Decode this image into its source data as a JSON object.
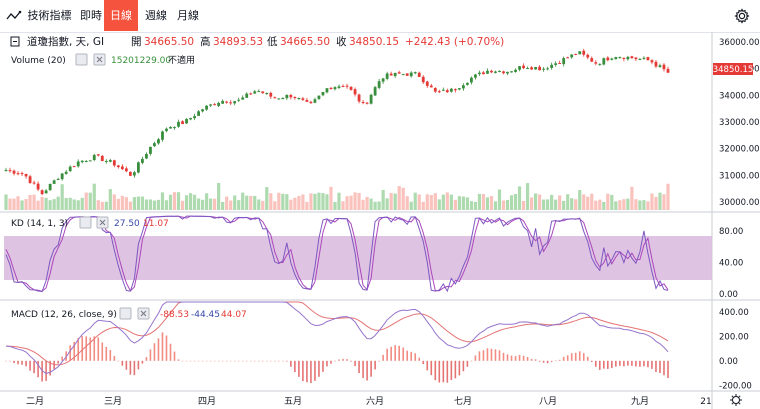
{
  "toolbar": {
    "indicators_label": "技術指標",
    "tabs": [
      {
        "label": "即時",
        "active": false
      },
      {
        "label": "日線",
        "active": true
      },
      {
        "label": "週線",
        "active": false
      },
      {
        "label": "月線",
        "active": false
      }
    ],
    "settings_icon": "gear-icon",
    "indicators_icon": "indicators-icon"
  },
  "colors": {
    "up": "#26a69a",
    "down": "#ef5350",
    "bull_candle": "#388e3c",
    "bear_candle": "#e53935",
    "accent": "#f5533d",
    "kd_band": "#d9b8dd",
    "k_line": "#7e57c2",
    "d_line": "#ab47bc",
    "macd_line": "#3f51b5",
    "signal_line": "#e57373",
    "price_tag": "#e53935"
  },
  "legend": {
    "symbol": "道瓊指數, 天, GI",
    "open_label": "開",
    "open": "34665.50",
    "high_label": "高",
    "high": "34893.53",
    "low_label": "低",
    "low": "34665.50",
    "close_label": "收",
    "close": "34850.15",
    "change": "+242.43 (+0.70%)",
    "volume_label": "Volume (20)",
    "volume_value": "15201229.00",
    "volume_na": "不適用",
    "kd_label": "KD (14, 1, 3)",
    "kd_k": "27.50",
    "kd_d": "11.07",
    "macd_label": "MACD (12, 26, close, 9)",
    "macd_hist": "-88.53",
    "macd_value": "-44.45",
    "macd_signal": "44.07"
  },
  "last_price_tag": "34850.15",
  "chart_data": [
    {
      "type": "candlestick",
      "x": [
        "二月",
        "三月",
        "四月",
        "五月",
        "六月",
        "七月",
        "八月",
        "九月",
        "21"
      ],
      "y_ticks": [
        30000,
        31000,
        32000,
        33000,
        34000,
        35000,
        36000
      ],
      "ylim": [
        29700,
        36300
      ],
      "approx_close_path": [
        [
          0,
          31200
        ],
        [
          4,
          31050
        ],
        [
          8,
          30300
        ],
        [
          12,
          31000
        ],
        [
          16,
          31500
        ],
        [
          20,
          31700
        ],
        [
          24,
          31450
        ],
        [
          28,
          31000
        ],
        [
          32,
          32000
        ],
        [
          36,
          32800
        ],
        [
          40,
          33000
        ],
        [
          44,
          33500
        ],
        [
          48,
          33800
        ],
        [
          52,
          33800
        ],
        [
          56,
          34200
        ],
        [
          60,
          33900
        ],
        [
          64,
          34000
        ],
        [
          68,
          33600
        ],
        [
          72,
          34300
        ],
        [
          76,
          34400
        ],
        [
          80,
          33600
        ],
        [
          84,
          34700
        ],
        [
          88,
          34800
        ],
        [
          92,
          34800
        ],
        [
          96,
          34100
        ],
        [
          100,
          34200
        ],
        [
          104,
          34650
        ],
        [
          108,
          34950
        ],
        [
          112,
          34900
        ],
        [
          116,
          35100
        ],
        [
          120,
          35000
        ],
        [
          124,
          35300
        ],
        [
          128,
          35600
        ],
        [
          132,
          35200
        ],
        [
          136,
          35500
        ],
        [
          140,
          35400
        ],
        [
          144,
          35300
        ],
        [
          148,
          34850
        ]
      ]
    },
    {
      "type": "bar",
      "name": "Volume (20)",
      "note": "daily volume bars, relative heights"
    },
    {
      "type": "line",
      "name": "KD (14, 1, 3)",
      "y_ticks": [
        0.0,
        40.0,
        80.0
      ],
      "ylim": [
        -5,
        100
      ],
      "band": [
        20,
        80
      ]
    },
    {
      "type": "line",
      "name": "MACD (12, 26, close, 9)",
      "y_ticks": [
        -200.0,
        0.0,
        200.0,
        400.0
      ],
      "ylim": [
        -230,
        480
      ]
    }
  ]
}
